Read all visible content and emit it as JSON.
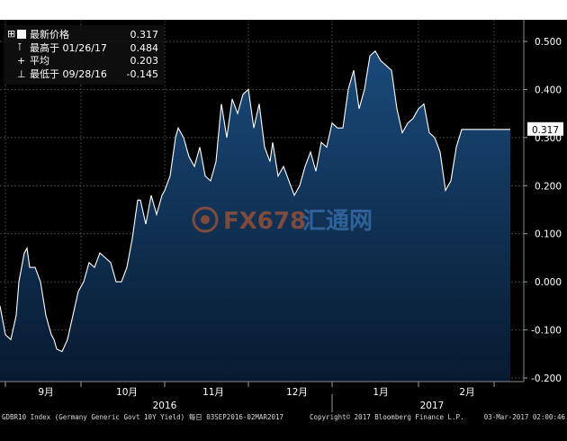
{
  "chart_data": {
    "type": "area",
    "title": "",
    "xlabel": "",
    "ylabel": "",
    "ylim": [
      -0.2,
      0.5
    ],
    "y_ticks": [
      "0.500",
      "0.400",
      "0.300",
      "0.200",
      "0.100",
      "0.000",
      "-0.100",
      "-0.200"
    ],
    "y_tick_values": [
      0.5,
      0.4,
      0.3,
      0.2,
      0.1,
      0.0,
      -0.1,
      -0.2
    ],
    "grid": true,
    "legend_position": "top-left",
    "legend": [
      {
        "label": "最新价格",
        "value": "0.317"
      },
      {
        "label": "最高于 01/26/17",
        "value": "0.484"
      },
      {
        "label": "平均",
        "value": "0.203"
      },
      {
        "label": "最低于 09/28/16",
        "value": "-0.145"
      }
    ],
    "last_value_label": "0.317",
    "month_labels": [
      {
        "label": "9月",
        "x": 17
      },
      {
        "label": "10月",
        "x": 47
      },
      {
        "label": "11月",
        "x": 79
      },
      {
        "label": "12月",
        "x": 110
      },
      {
        "label": "1月",
        "x": 141
      },
      {
        "label": "2月",
        "x": 173
      }
    ],
    "month_boundaries": [
      2,
      30,
      61,
      92,
      123,
      155,
      183
    ],
    "year_labels": [
      {
        "label": "2016",
        "x": 61
      },
      {
        "label": "2017",
        "x": 160
      }
    ],
    "year_boundary": 123,
    "x_range": [
      0,
      189
    ],
    "series": [
      {
        "color": "#ffffff",
        "fill": "#0b2a4a",
        "x": [
          0,
          2,
          4,
          6,
          7,
          9,
          10,
          11,
          13,
          15,
          17,
          19,
          20,
          21,
          23,
          25,
          27,
          29,
          31,
          33,
          35,
          37,
          39,
          41,
          43,
          45,
          47,
          49,
          51,
          52,
          54,
          56,
          58,
          60,
          61,
          63,
          65,
          66,
          68,
          70,
          72,
          74,
          76,
          78,
          80,
          82,
          84,
          86,
          88,
          90,
          92,
          94,
          96,
          98,
          100,
          101,
          103,
          105,
          107,
          109,
          111,
          113,
          115,
          117,
          119,
          121,
          123,
          125,
          127,
          129,
          131,
          133,
          135,
          137,
          139,
          141,
          143,
          145,
          147,
          149,
          151,
          153,
          155,
          157,
          159,
          161,
          163,
          165,
          167,
          169,
          171,
          173,
          175,
          177,
          179,
          181,
          183,
          185,
          187,
          189
        ],
        "values": [
          -0.05,
          -0.11,
          -0.12,
          -0.07,
          0.0,
          0.06,
          0.07,
          0.03,
          0.03,
          0.0,
          -0.07,
          -0.11,
          -0.12,
          -0.14,
          -0.145,
          -0.12,
          -0.07,
          -0.02,
          0.0,
          0.04,
          0.03,
          0.06,
          0.05,
          0.04,
          0.0,
          0.0,
          0.03,
          0.09,
          0.17,
          0.17,
          0.12,
          0.18,
          0.14,
          0.18,
          0.19,
          0.22,
          0.3,
          0.32,
          0.3,
          0.26,
          0.24,
          0.28,
          0.22,
          0.21,
          0.25,
          0.37,
          0.3,
          0.38,
          0.35,
          0.39,
          0.4,
          0.32,
          0.37,
          0.28,
          0.25,
          0.29,
          0.22,
          0.24,
          0.21,
          0.18,
          0.2,
          0.24,
          0.27,
          0.23,
          0.29,
          0.28,
          0.33,
          0.32,
          0.32,
          0.4,
          0.44,
          0.36,
          0.4,
          0.47,
          0.48,
          0.46,
          0.45,
          0.44,
          0.36,
          0.31,
          0.33,
          0.34,
          0.36,
          0.37,
          0.31,
          0.3,
          0.27,
          0.19,
          0.21,
          0.28,
          0.317,
          0.317,
          0.317,
          0.317,
          0.317,
          0.317,
          0.317,
          0.317,
          0.317,
          0.317
        ]
      }
    ]
  },
  "watermark": {
    "brand": "FX678",
    "text": "汇通网"
  },
  "footer": {
    "left": "GDBR10 Index (Germany Generic Govt 10Y Yield)  每日 03SEP2016-02MAR2017",
    "center": "Copyright© 2017 Bloomberg Finance L.P.",
    "right": "03-Mar-2017 02:00:46"
  }
}
